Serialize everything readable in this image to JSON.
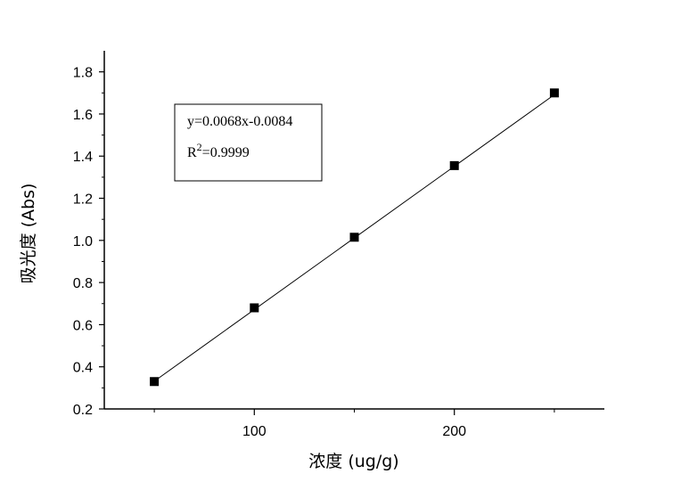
{
  "chart_data": {
    "type": "scatter",
    "xlabel": "浓度 (ug/g)",
    "ylabel": "吸光度 (Abs)",
    "xlim": [
      25,
      275
    ],
    "ylim": [
      0.2,
      1.9
    ],
    "x_major_ticks": [
      100,
      200
    ],
    "x_tick_labels": [
      "100",
      "200"
    ],
    "y_major_ticks": [
      0.2,
      0.4,
      0.6,
      0.8,
      1.0,
      1.2,
      1.4,
      1.6,
      1.8
    ],
    "y_tick_labels": [
      "0.2",
      "0.4",
      "0.6",
      "0.8",
      "1.0",
      "1.2",
      "1.4",
      "1.6",
      "1.8"
    ],
    "grid": false,
    "series": [
      {
        "marker": "square",
        "color": "#000000",
        "x": [
          50,
          100,
          150,
          200,
          250
        ],
        "y": [
          0.33,
          0.68,
          1.015,
          1.355,
          1.7
        ]
      }
    ],
    "fit_line": {
      "slope": 0.0068,
      "intercept": -0.0084,
      "x_range": [
        50,
        250
      ],
      "color": "#000000"
    },
    "annotation": {
      "equation": "y=0.0068x-0.0084",
      "r2_prefix": "R",
      "r2_sup": "2",
      "r2_value": "=0.9999",
      "placement": "top-left"
    }
  }
}
